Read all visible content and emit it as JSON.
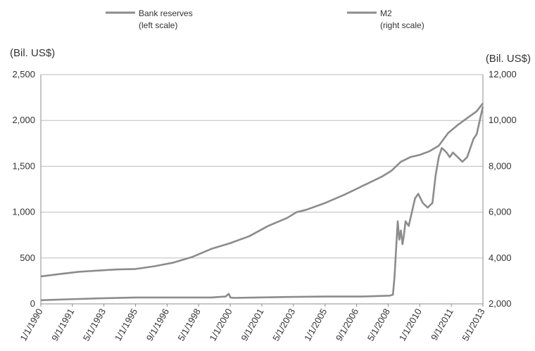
{
  "chart_data": {
    "type": "line",
    "left_unit": "(Bil. US$)",
    "right_unit": "(Bil. US$)",
    "legend": [
      {
        "line1": "Bank reserves",
        "line2": "(left scale)",
        "color": "#8c8c8c"
      },
      {
        "line1": "M2",
        "line2": "(right scale)",
        "color": "#8c8c8c"
      }
    ],
    "x_range": [
      "1990-01-01",
      "2013-05-01"
    ],
    "x_ticks": [
      {
        "label": "1/1/1990",
        "date": "1990-01-01"
      },
      {
        "label": "9/1/1991",
        "date": "1991-09-01"
      },
      {
        "label": "5/1/1993",
        "date": "1993-05-01"
      },
      {
        "label": "1/1/1995",
        "date": "1995-01-01"
      },
      {
        "label": "9/1/1996",
        "date": "1996-09-01"
      },
      {
        "label": "5/1/1998",
        "date": "1998-05-01"
      },
      {
        "label": "1/1/2000",
        "date": "2000-01-01"
      },
      {
        "label": "9/1/2001",
        "date": "2001-09-01"
      },
      {
        "label": "5/1/2003",
        "date": "2003-05-01"
      },
      {
        "label": "1/1/2005",
        "date": "2005-01-01"
      },
      {
        "label": "9/1/2006",
        "date": "2006-09-01"
      },
      {
        "label": "5/1/2008",
        "date": "2008-05-01"
      },
      {
        "label": "1/1/2010",
        "date": "2010-01-01"
      },
      {
        "label": "9/1/2011",
        "date": "2011-09-01"
      },
      {
        "label": "5/1/2013",
        "date": "2013-05-01"
      }
    ],
    "y_left": {
      "min": 0,
      "max": 2500,
      "ticks": [
        {
          "value": 0,
          "label": "0"
        },
        {
          "value": 500,
          "label": "500"
        },
        {
          "value": 1000,
          "label": "1,000"
        },
        {
          "value": 1500,
          "label": "1,500"
        },
        {
          "value": 2000,
          "label": "2,000"
        },
        {
          "value": 2500,
          "label": "2,500"
        }
      ]
    },
    "y_right": {
      "min": 2000,
      "max": 12000,
      "ticks": [
        {
          "value": 2000,
          "label": "2,000"
        },
        {
          "value": 4000,
          "label": "4,000"
        },
        {
          "value": 6000,
          "label": "6,000"
        },
        {
          "value": 8000,
          "label": "8,000"
        },
        {
          "value": 10000,
          "label": "10,000"
        },
        {
          "value": 12000,
          "label": "12,000"
        }
      ]
    },
    "grid": true,
    "series": [
      {
        "name": "M2",
        "axis": "right",
        "color": "#8c8c8c",
        "x": [
          "1990-01-01",
          "1991-01-01",
          "1992-01-01",
          "1993-01-01",
          "1994-01-01",
          "1995-01-01",
          "1996-01-01",
          "1997-01-01",
          "1998-01-01",
          "1999-01-01",
          "2000-01-01",
          "2001-01-01",
          "2002-01-01",
          "2003-01-01",
          "2003-07-01",
          "2004-01-01",
          "2005-01-01",
          "2006-01-01",
          "2007-01-01",
          "2008-01-01",
          "2008-07-01",
          "2009-01-01",
          "2009-07-01",
          "2010-01-01",
          "2010-07-01",
          "2011-01-01",
          "2011-07-01",
          "2012-01-01",
          "2012-07-01",
          "2013-01-01",
          "2013-05-01"
        ],
        "y": [
          3200,
          3300,
          3400,
          3450,
          3500,
          3520,
          3640,
          3800,
          4050,
          4400,
          4650,
          4950,
          5400,
          5750,
          6000,
          6100,
          6400,
          6750,
          7150,
          7550,
          7800,
          8200,
          8400,
          8500,
          8650,
          8900,
          9450,
          9800,
          10100,
          10400,
          10750
        ]
      },
      {
        "name": "Bank reserves",
        "axis": "left",
        "color": "#8c8c8c",
        "x": [
          "1990-01-01",
          "1991-06-01",
          "1993-01-01",
          "1995-01-01",
          "1997-01-01",
          "1999-01-01",
          "1999-10-01",
          "1999-12-01",
          "2000-01-01",
          "2000-03-01",
          "2001-06-01",
          "2003-01-01",
          "2005-01-01",
          "2007-01-01",
          "2008-06-01",
          "2008-08-01",
          "2008-09-01",
          "2008-10-01",
          "2008-11-01",
          "2008-12-01",
          "2009-01-01",
          "2009-02-01",
          "2009-03-01",
          "2009-04-01",
          "2009-06-01",
          "2009-08-01",
          "2009-10-01",
          "2009-12-01",
          "2010-03-01",
          "2010-06-01",
          "2010-09-01",
          "2010-11-01",
          "2011-01-01",
          "2011-03-01",
          "2011-06-01",
          "2011-08-01",
          "2011-10-01",
          "2012-01-01",
          "2012-04-01",
          "2012-07-01",
          "2012-09-01",
          "2012-11-01",
          "2013-01-01",
          "2013-03-01",
          "2013-05-01"
        ],
        "y": [
          40,
          50,
          60,
          70,
          70,
          70,
          80,
          110,
          70,
          65,
          70,
          75,
          80,
          80,
          90,
          100,
          300,
          600,
          900,
          700,
          800,
          650,
          750,
          900,
          850,
          1000,
          1150,
          1200,
          1100,
          1050,
          1100,
          1400,
          1600,
          1700,
          1650,
          1600,
          1650,
          1600,
          1550,
          1600,
          1700,
          1800,
          1850,
          2000,
          2150
        ]
      }
    ]
  }
}
